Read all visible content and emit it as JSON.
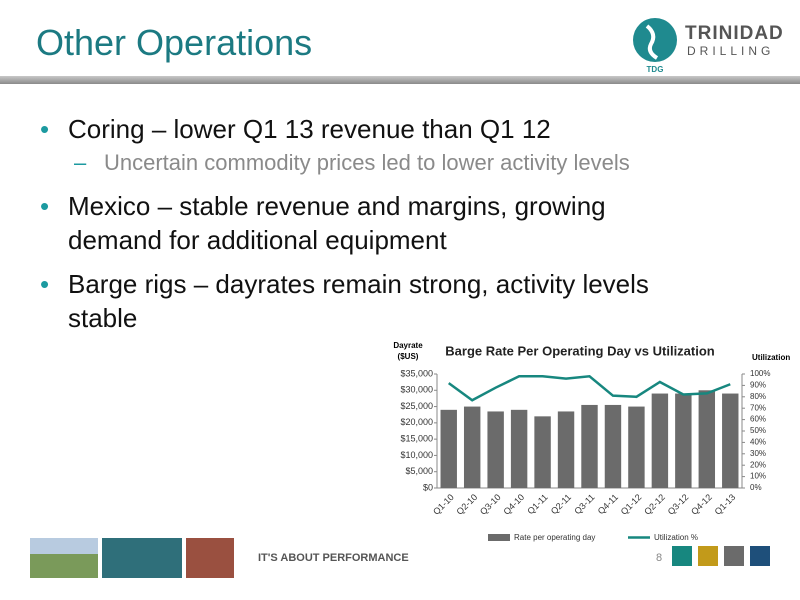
{
  "header": {
    "title": "Other Operations",
    "logo": {
      "name": "TRINIDAD",
      "sub": "DRILLING",
      "mark": "TDG"
    }
  },
  "bullets": [
    {
      "text": "Coring – lower Q1 13 revenue than Q1 12",
      "sub": [
        "Uncertain commodity prices led to lower activity levels"
      ]
    },
    {
      "text": "Mexico – stable revenue and margins, growing demand for additional equipment"
    },
    {
      "text": "Barge rigs – dayrates remain strong, activity levels stable"
    }
  ],
  "chart_data": {
    "type": "bar",
    "title": "Barge Rate Per Operating Day vs Utilization",
    "ylabel": [
      "Dayrate",
      "($US)"
    ],
    "y2label": "Utilization",
    "categories": [
      "Q1-10",
      "Q2-10",
      "Q3-10",
      "Q4-10",
      "Q1-11",
      "Q2-11",
      "Q3-11",
      "Q4-11",
      "Q1-12",
      "Q2-12",
      "Q3-12",
      "Q4-12",
      "Q1-13"
    ],
    "series": [
      {
        "name": "Rate per operating day",
        "type": "bar",
        "color": "#6b6b6b",
        "values": [
          24000,
          25000,
          23500,
          24000,
          22000,
          23500,
          25500,
          25500,
          25000,
          29000,
          29000,
          30000,
          29000
        ]
      },
      {
        "name": "Utilization %",
        "type": "line",
        "axis": "y2",
        "color": "#17877f",
        "values": [
          92,
          77,
          88,
          98,
          98,
          96,
          98,
          81,
          80,
          93,
          82,
          83,
          91
        ]
      }
    ],
    "ylim": [
      0,
      35000
    ],
    "yticks": [
      {
        "value": 0,
        "label": "$0"
      },
      {
        "value": 5000,
        "label": "$5,000"
      },
      {
        "value": 10000,
        "label": "$10,000"
      },
      {
        "value": 15000,
        "label": "$15,000"
      },
      {
        "value": 20000,
        "label": "$20,000"
      },
      {
        "value": 25000,
        "label": "$25,000"
      },
      {
        "value": 30000,
        "label": "$30,000"
      },
      {
        "value": 35000,
        "label": "$35,000"
      }
    ],
    "y2lim": [
      0,
      100
    ],
    "y2ticks": [
      {
        "value": 0,
        "label": "0%"
      },
      {
        "value": 10,
        "label": "10%"
      },
      {
        "value": 20,
        "label": "20%"
      },
      {
        "value": 30,
        "label": "30%"
      },
      {
        "value": 40,
        "label": "40%"
      },
      {
        "value": 50,
        "label": "50%"
      },
      {
        "value": 60,
        "label": "60%"
      },
      {
        "value": 70,
        "label": "70%"
      },
      {
        "value": 80,
        "label": "80%"
      },
      {
        "value": 90,
        "label": "90%"
      },
      {
        "value": 100,
        "label": "100%"
      }
    ],
    "grid": false,
    "legend": "bottom"
  },
  "footer": {
    "tagline": "IT'S ABOUT PERFORMANCE",
    "page": "8"
  }
}
